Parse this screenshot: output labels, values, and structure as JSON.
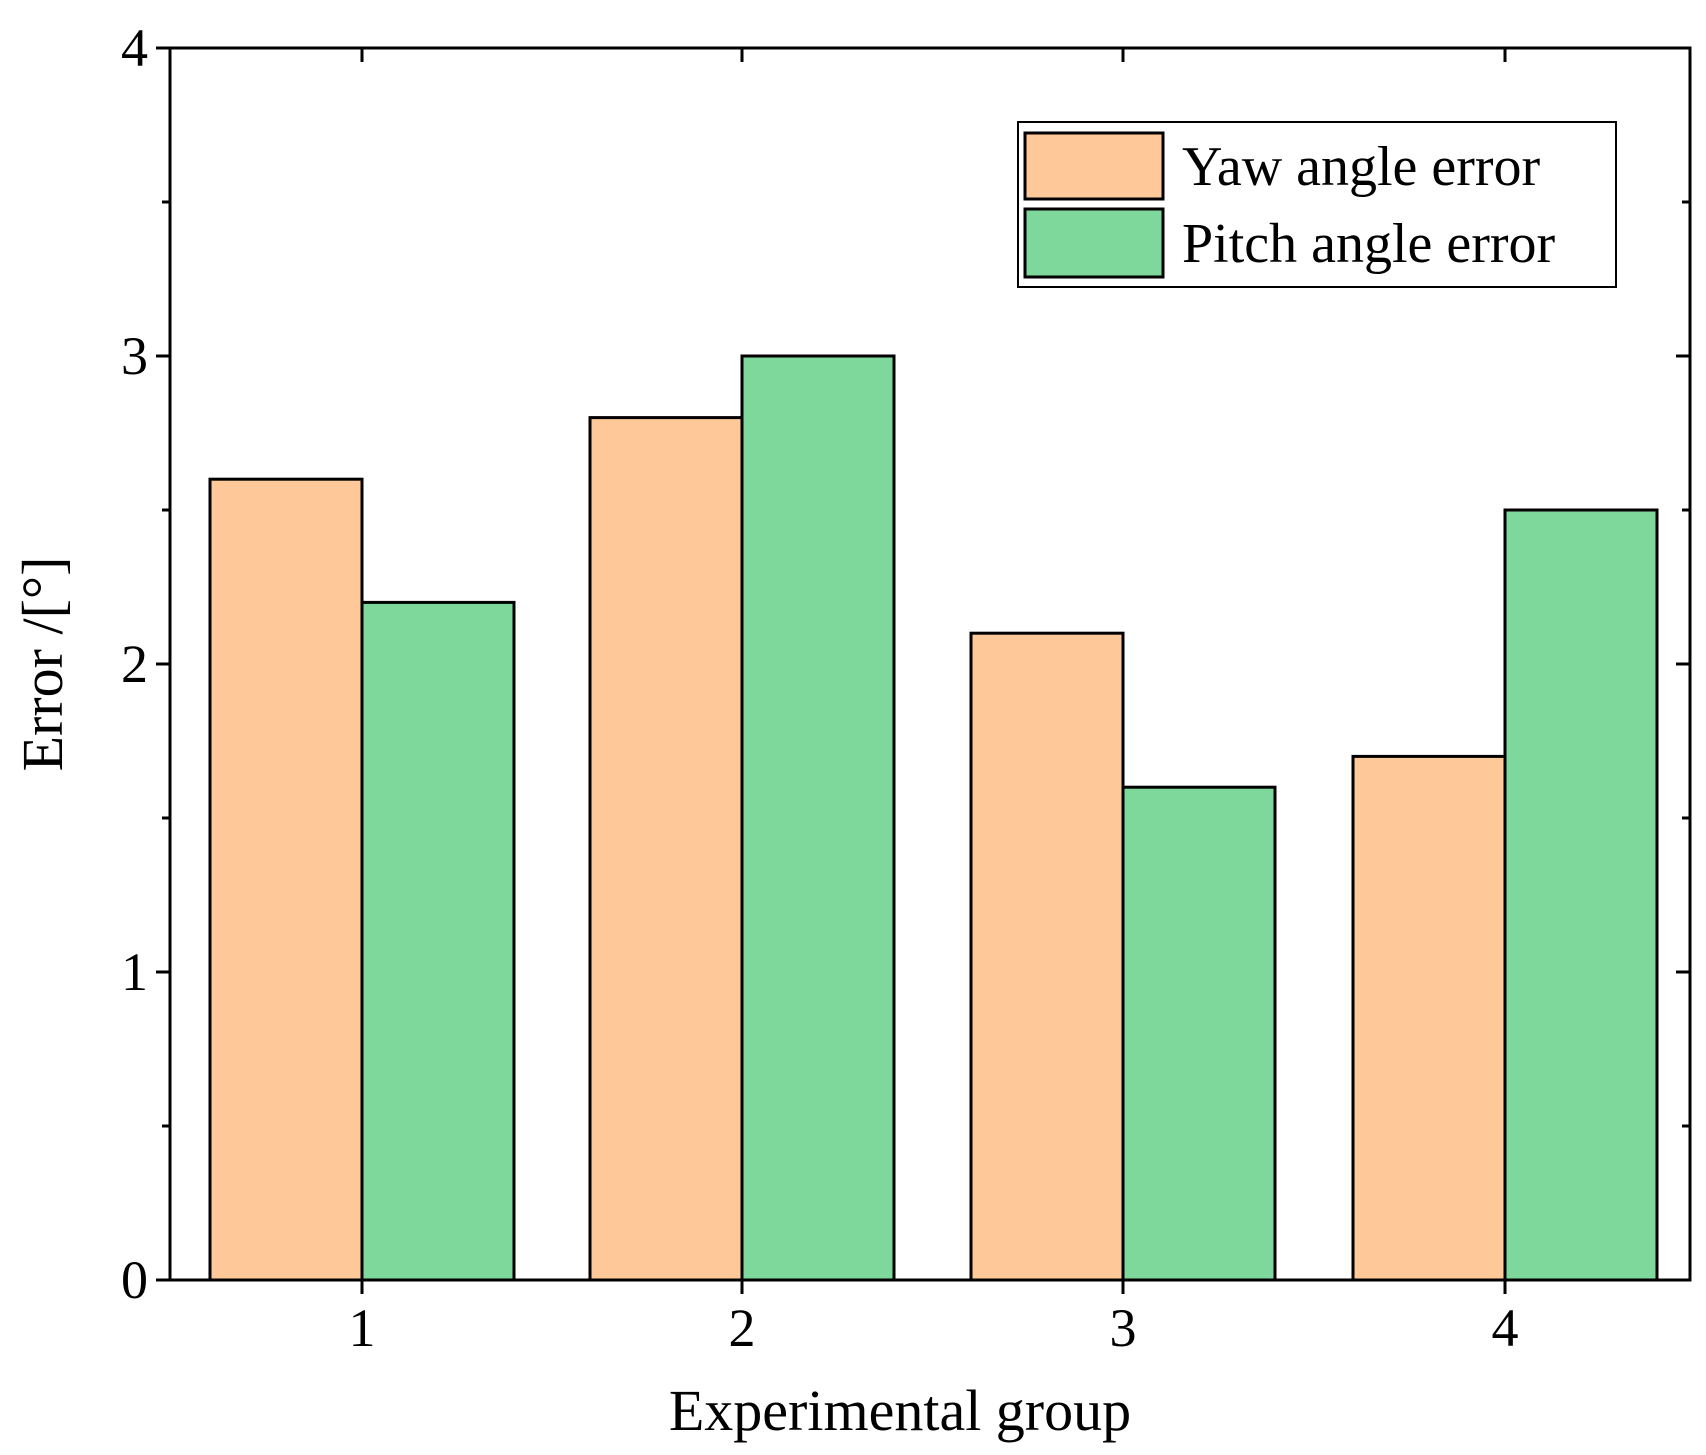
{
  "chart_data": {
    "type": "bar",
    "title": "",
    "xlabel": "Experimental group",
    "ylabel": "Error /[°]",
    "categories": [
      "1",
      "2",
      "3",
      "4"
    ],
    "series": [
      {
        "name": "Yaw angle error",
        "color": "#ffc898",
        "values": [
          2.6,
          2.8,
          2.1,
          1.7
        ]
      },
      {
        "name": "Pitch angle error",
        "color": "#7fd89b",
        "values": [
          2.2,
          3.0,
          1.6,
          2.5
        ]
      }
    ],
    "ylim": [
      0,
      4
    ],
    "yticks": [
      "0",
      "1",
      "2",
      "3",
      "4"
    ],
    "grid": false,
    "legend_position": "top-right"
  }
}
